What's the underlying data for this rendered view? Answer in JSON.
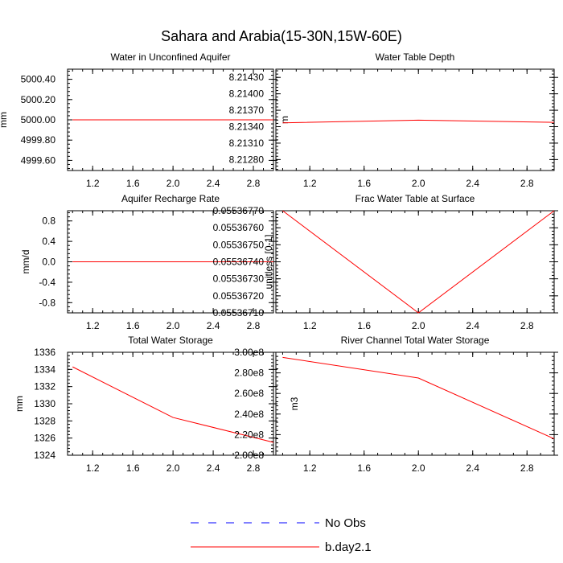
{
  "title": "Sahara and Arabia(15-30N,15W-60E)",
  "colors": {
    "model": "#ff0000",
    "obs": "#0000ff"
  },
  "legend": {
    "items": [
      {
        "label": "No Obs",
        "style": "dashed",
        "color": "#0000ff"
      },
      {
        "label": "b.day2.1",
        "style": "solid",
        "color": "#ff0000"
      }
    ]
  },
  "chart_data": [
    {
      "type": "line",
      "title": "Water in Unconfined Aquifer",
      "ylabel": "mm",
      "xlim": [
        0.95,
        3.0
      ],
      "ylim": [
        4999.5,
        5000.5
      ],
      "xticks": [
        1.2,
        1.6,
        2.0,
        2.4,
        2.8
      ],
      "xtick_labels": [
        "1.2",
        "1.6",
        "2.0",
        "2.4",
        "2.8"
      ],
      "yticks": [
        4999.6,
        4999.8,
        5000.0,
        5000.2,
        5000.4
      ],
      "ytick_labels": [
        "4999.60",
        "4999.80",
        "5000.00",
        "5000.20",
        "5000.40"
      ],
      "y_minor_step": 0.04,
      "series": [
        {
          "name": "b.day2.1",
          "x": [
            1.0,
            2.0,
            3.0
          ],
          "values": [
            5000.0,
            5000.0,
            5000.0
          ]
        }
      ]
    },
    {
      "type": "line",
      "title": "Water Table Depth",
      "ylabel": "m",
      "xlim": [
        0.95,
        3.0
      ],
      "ylim": [
        8.2126,
        8.21445
      ],
      "xticks": [
        1.2,
        1.6,
        2.0,
        2.4,
        2.8
      ],
      "xtick_labels": [
        "1.2",
        "1.6",
        "2.0",
        "2.4",
        "2.8"
      ],
      "yticks": [
        8.2128,
        8.2131,
        8.2134,
        8.2137,
        8.214,
        8.2143
      ],
      "ytick_labels": [
        "8.21280",
        "8.21310",
        "8.21340",
        "8.21370",
        "8.21400",
        "8.21430"
      ],
      "y_minor_step": 6e-05,
      "series": [
        {
          "name": "b.day2.1",
          "x": [
            1.0,
            2.0,
            3.0
          ],
          "values": [
            8.21347,
            8.21352,
            8.21348
          ]
        }
      ]
    },
    {
      "type": "line",
      "title": "Aquifer Recharge Rate",
      "ylabel": "mm/d",
      "xlim": [
        0.95,
        3.0
      ],
      "ylim": [
        -1.0,
        1.0
      ],
      "xticks": [
        1.2,
        1.6,
        2.0,
        2.4,
        2.8
      ],
      "xtick_labels": [
        "1.2",
        "1.6",
        "2.0",
        "2.4",
        "2.8"
      ],
      "yticks": [
        -0.8,
        -0.4,
        0.0,
        0.4,
        0.8
      ],
      "ytick_labels": [
        "-0.8",
        "-0.4",
        "0.0",
        "0.4",
        "0.8"
      ],
      "y_minor_step": 0.08,
      "series": [
        {
          "name": "b.day2.1",
          "x": [
            1.0,
            2.0,
            3.0
          ],
          "values": [
            0.0,
            0.0,
            0.0
          ]
        }
      ]
    },
    {
      "type": "line",
      "title": "Frac Water Table at Surface",
      "ylabel": "unitless [0-1]",
      "xlim": [
        0.95,
        3.0
      ],
      "ylim": [
        0.0553671,
        0.0553677
      ],
      "xticks": [
        1.2,
        1.6,
        2.0,
        2.4,
        2.8
      ],
      "xtick_labels": [
        "1.2",
        "1.6",
        "2.0",
        "2.4",
        "2.8"
      ],
      "yticks": [
        0.0553671,
        0.0553672,
        0.0553673,
        0.0553674,
        0.0553675,
        0.0553676,
        0.0553677
      ],
      "ytick_labels": [
        "0.05536710",
        "0.05536720",
        "0.05536730",
        "0.05536740",
        "0.05536750",
        "0.05536760",
        "0.05536770"
      ],
      "y_minor_step": 2e-08,
      "series": [
        {
          "name": "b.day2.1",
          "x": [
            1.0,
            2.0,
            3.0
          ],
          "values": [
            0.0553677,
            0.0553671,
            0.0553677
          ]
        }
      ]
    },
    {
      "type": "line",
      "title": "Total Water Storage",
      "ylabel": "mm",
      "xlim": [
        0.95,
        3.0
      ],
      "ylim": [
        1324,
        1336
      ],
      "xticks": [
        1.2,
        1.6,
        2.0,
        2.4,
        2.8
      ],
      "xtick_labels": [
        "1.2",
        "1.6",
        "2.0",
        "2.4",
        "2.8"
      ],
      "yticks": [
        1324,
        1326,
        1328,
        1330,
        1332,
        1334,
        1336
      ],
      "ytick_labels": [
        "1324",
        "1326",
        "1328",
        "1330",
        "1332",
        "1334",
        "1336"
      ],
      "y_minor_step": 0.4,
      "series": [
        {
          "name": "b.day2.1",
          "x": [
            1.0,
            2.0,
            3.0
          ],
          "values": [
            1334.3,
            1328.4,
            1325.5
          ]
        }
      ]
    },
    {
      "type": "line",
      "title": "River Channel Total Water Storage",
      "ylabel": "m3",
      "xlim": [
        0.95,
        3.0
      ],
      "ylim": [
        200000000,
        300000000
      ],
      "xticks": [
        1.2,
        1.6,
        2.0,
        2.4,
        2.8
      ],
      "xtick_labels": [
        "1.2",
        "1.6",
        "2.0",
        "2.4",
        "2.8"
      ],
      "yticks": [
        200000000,
        220000000,
        240000000,
        260000000,
        280000000,
        300000000
      ],
      "ytick_labels": [
        "2.00e8",
        "2.20e8",
        "2.40e8",
        "2.60e8",
        "2.80e8",
        "3.00e8"
      ],
      "y_minor_step": 4000000,
      "series": [
        {
          "name": "b.day2.1",
          "x": [
            1.0,
            2.0,
            3.0
          ],
          "values": [
            295000000,
            275000000,
            216000000
          ]
        }
      ]
    }
  ]
}
